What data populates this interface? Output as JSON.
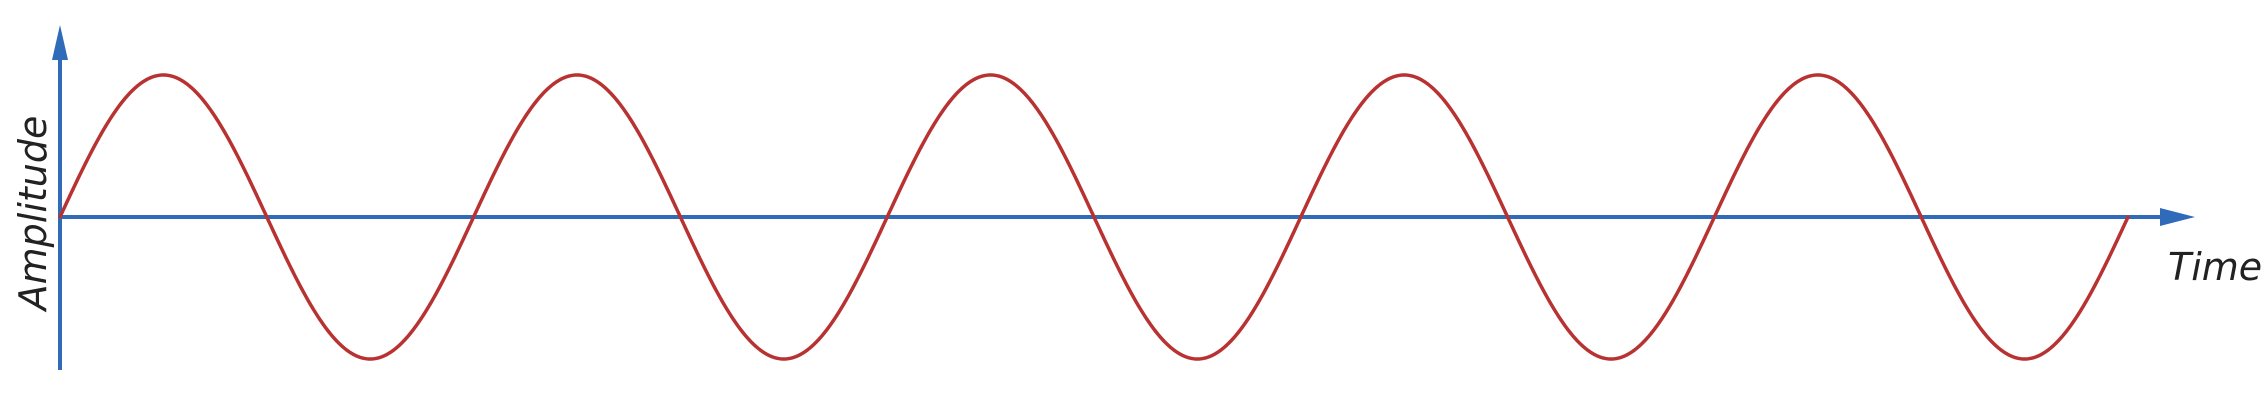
{
  "diagram": {
    "y_axis_label": "Amplitude",
    "x_axis_label": "Time",
    "cycles": 5,
    "axis_color": "#2F6BB8",
    "wave_color": "#B83232"
  }
}
